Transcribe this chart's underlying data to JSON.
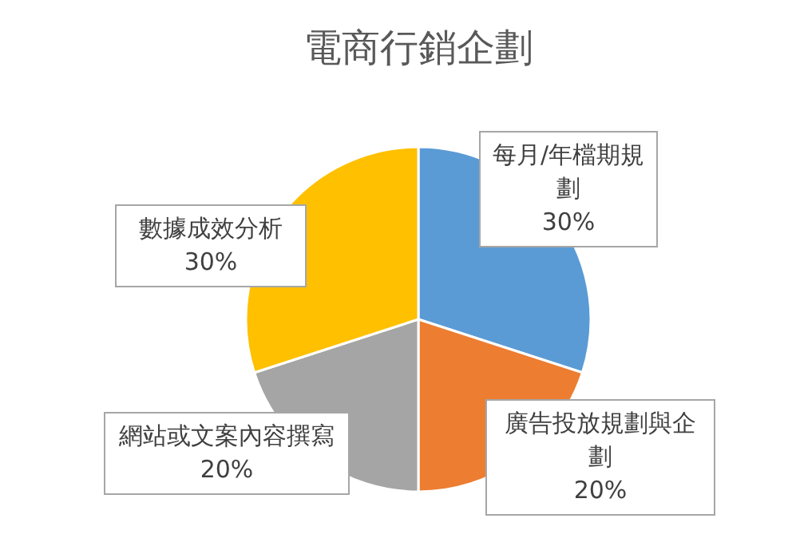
{
  "chart_data": {
    "type": "pie",
    "title": "電商行銷企劃",
    "categories": [
      "每月/年檔期規劃",
      "廣告投放規劃與企劃",
      "網站或文案內容撰寫",
      "數據成效分析"
    ],
    "values": [
      30,
      20,
      20,
      30
    ],
    "value_labels": [
      "30%",
      "20%",
      "20%",
      "30%"
    ],
    "colors": [
      "#5b9bd5",
      "#ed7d31",
      "#a5a5a5",
      "#ffc000"
    ]
  }
}
